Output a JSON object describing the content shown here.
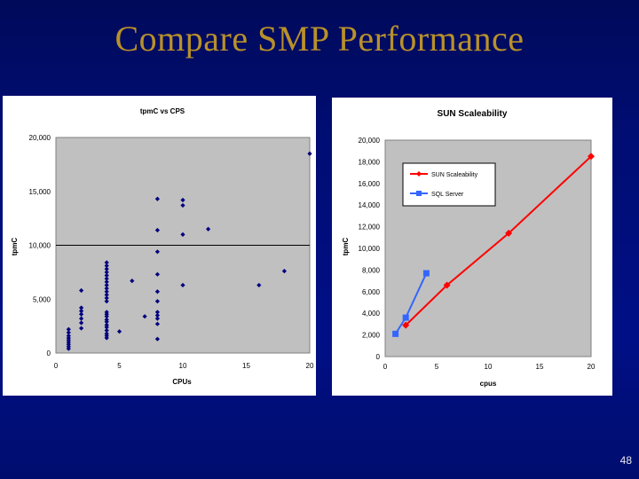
{
  "slide": {
    "title": "Compare SMP Performance",
    "page_number": "48"
  },
  "chart_data": [
    {
      "type": "scatter",
      "title": "tpmC vs CPS",
      "xlabel": "CPUs",
      "ylabel": "tpmC",
      "xlim": [
        0,
        20
      ],
      "ylim": [
        0,
        20000
      ],
      "xticks": [
        "0",
        "5",
        "10",
        "15",
        "20"
      ],
      "yticks": [
        "0",
        "5,000",
        "10,000",
        "15,000",
        "20,000"
      ],
      "grid": "y-only at 10,000",
      "plot_bg": "#c0c0c0",
      "marker_color": "#000080",
      "points": [
        [
          1,
          400
        ],
        [
          1,
          600
        ],
        [
          1,
          800
        ],
        [
          1,
          1000
        ],
        [
          1,
          1200
        ],
        [
          1,
          1400
        ],
        [
          1,
          1600
        ],
        [
          1,
          1900
        ],
        [
          1,
          2200
        ],
        [
          2,
          2300
        ],
        [
          2,
          2800
        ],
        [
          2,
          3200
        ],
        [
          2,
          3600
        ],
        [
          2,
          3900
        ],
        [
          2,
          4200
        ],
        [
          2,
          5800
        ],
        [
          4,
          1400
        ],
        [
          4,
          1600
        ],
        [
          4,
          1800
        ],
        [
          4,
          2100
        ],
        [
          4,
          2400
        ],
        [
          4,
          2600
        ],
        [
          4,
          2900
        ],
        [
          4,
          3100
        ],
        [
          4,
          3400
        ],
        [
          4,
          3600
        ],
        [
          4,
          3800
        ],
        [
          4,
          4800
        ],
        [
          4,
          5100
        ],
        [
          4,
          5400
        ],
        [
          4,
          5700
        ],
        [
          4,
          6000
        ],
        [
          4,
          6300
        ],
        [
          4,
          6600
        ],
        [
          4,
          6900
        ],
        [
          4,
          7200
        ],
        [
          4,
          7500
        ],
        [
          4,
          7800
        ],
        [
          4,
          8100
        ],
        [
          4,
          8400
        ],
        [
          5,
          2000
        ],
        [
          6,
          6700
        ],
        [
          7,
          3400
        ],
        [
          8,
          1300
        ],
        [
          8,
          2700
        ],
        [
          8,
          3200
        ],
        [
          8,
          3500
        ],
        [
          8,
          3800
        ],
        [
          8,
          4800
        ],
        [
          8,
          5700
        ],
        [
          8,
          7300
        ],
        [
          8,
          9400
        ],
        [
          8,
          11400
        ],
        [
          8,
          14300
        ],
        [
          10,
          6300
        ],
        [
          10,
          11000
        ],
        [
          10,
          13700
        ],
        [
          10,
          14200
        ],
        [
          12,
          11500
        ],
        [
          16,
          6300
        ],
        [
          18,
          7600
        ],
        [
          20,
          18500
        ]
      ]
    },
    {
      "type": "line",
      "title": "SUN Scaleability",
      "xlabel": "cpus",
      "ylabel": "tpmC",
      "xlim": [
        0,
        20
      ],
      "ylim": [
        0,
        20000
      ],
      "xticks": [
        "0",
        "5",
        "10",
        "15",
        "20"
      ],
      "yticks": [
        "0",
        "2,000",
        "4,000",
        "6,000",
        "8,000",
        "10,000",
        "12,000",
        "14,000",
        "16,000",
        "18,000",
        "20,000"
      ],
      "grid": "none",
      "legend_position": "upper-left",
      "plot_bg": "#c0c0c0",
      "series": [
        {
          "name": "SUN Scaleability",
          "color": "#ff0000",
          "marker": "diamond",
          "x": [
            2,
            6,
            12,
            20
          ],
          "y": [
            2900,
            6600,
            11400,
            18500
          ]
        },
        {
          "name": "SQL Server",
          "color": "#3366ff",
          "marker": "square",
          "x": [
            1,
            2,
            4
          ],
          "y": [
            2100,
            3600,
            7700
          ]
        }
      ]
    }
  ]
}
